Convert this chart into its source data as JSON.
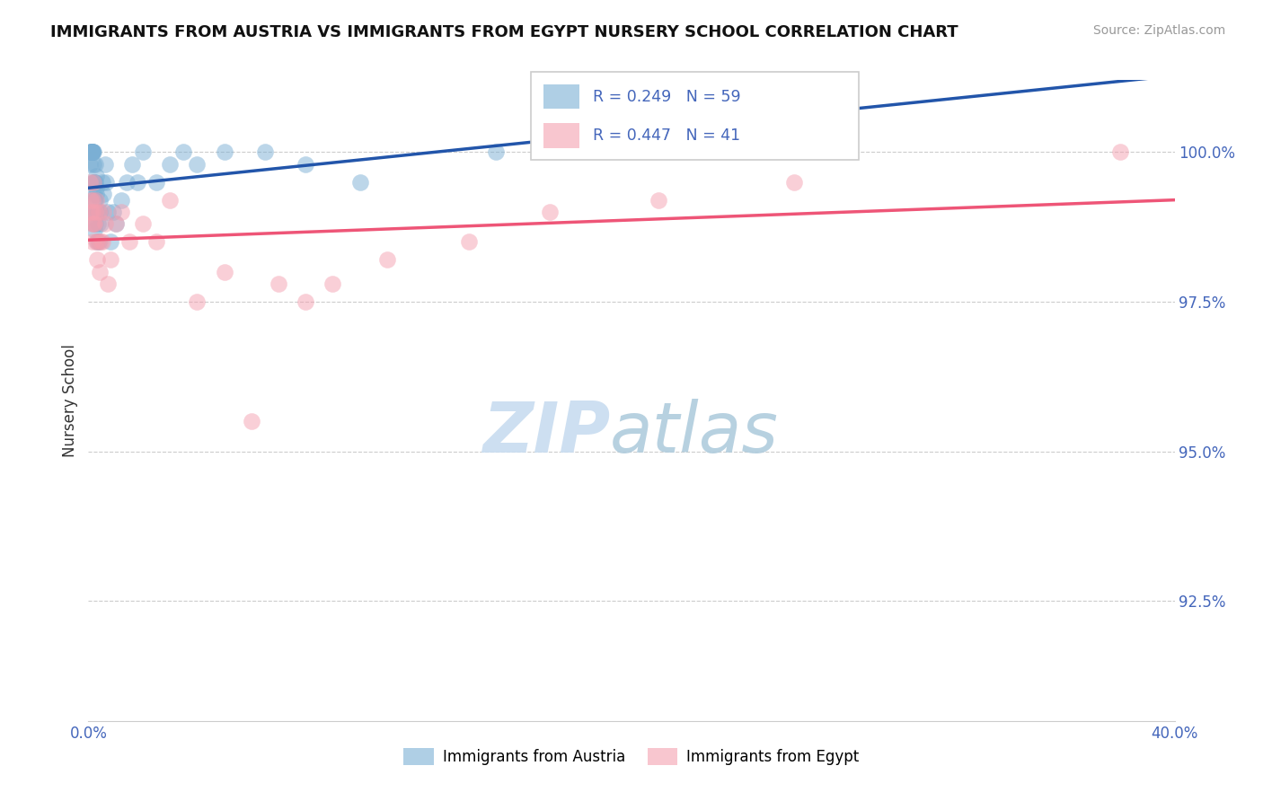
{
  "title": "IMMIGRANTS FROM AUSTRIA VS IMMIGRANTS FROM EGYPT NURSERY SCHOOL CORRELATION CHART",
  "source": "Source: ZipAtlas.com",
  "ylabel": "Nursery School",
  "xlim": [
    0.0,
    40.0
  ],
  "ylim": [
    90.5,
    101.2
  ],
  "yticks": [
    92.5,
    95.0,
    97.5,
    100.0
  ],
  "ytick_labels": [
    "92.5%",
    "95.0%",
    "97.5%",
    "100.0%"
  ],
  "austria_color": "#7BAFD4",
  "egypt_color": "#F4A0B0",
  "austria_line_color": "#2255AA",
  "egypt_line_color": "#EE5577",
  "tick_label_color": "#4466BB",
  "austria_R": 0.249,
  "austria_N": 59,
  "egypt_R": 0.447,
  "egypt_N": 41,
  "legend_label_austria": "Immigrants from Austria",
  "legend_label_egypt": "Immigrants from Egypt",
  "austria_x": [
    0.05,
    0.07,
    0.08,
    0.1,
    0.1,
    0.12,
    0.13,
    0.14,
    0.15,
    0.15,
    0.16,
    0.17,
    0.18,
    0.18,
    0.19,
    0.2,
    0.2,
    0.2,
    0.21,
    0.22,
    0.22,
    0.23,
    0.24,
    0.25,
    0.25,
    0.26,
    0.27,
    0.28,
    0.3,
    0.3,
    0.32,
    0.34,
    0.36,
    0.38,
    0.4,
    0.42,
    0.45,
    0.5,
    0.55,
    0.6,
    0.65,
    0.7,
    0.8,
    0.9,
    1.0,
    1.2,
    1.4,
    1.6,
    1.8,
    2.0,
    2.5,
    3.0,
    3.5,
    4.0,
    5.0,
    6.5,
    8.0,
    10.0,
    15.0
  ],
  "austria_y": [
    99.8,
    100.0,
    100.0,
    100.0,
    100.0,
    100.0,
    100.0,
    100.0,
    100.0,
    100.0,
    100.0,
    100.0,
    99.8,
    99.5,
    99.5,
    99.3,
    99.0,
    98.8,
    98.7,
    99.2,
    99.5,
    99.0,
    99.2,
    99.5,
    98.8,
    99.8,
    99.6,
    99.4,
    99.3,
    99.0,
    98.5,
    99.0,
    98.8,
    98.5,
    99.0,
    99.2,
    98.8,
    99.5,
    99.3,
    99.8,
    99.5,
    99.0,
    98.5,
    99.0,
    98.8,
    99.2,
    99.5,
    99.8,
    99.5,
    100.0,
    99.5,
    99.8,
    100.0,
    99.8,
    100.0,
    100.0,
    99.8,
    99.5,
    100.0
  ],
  "egypt_x": [
    0.05,
    0.08,
    0.1,
    0.12,
    0.14,
    0.15,
    0.16,
    0.18,
    0.2,
    0.22,
    0.25,
    0.28,
    0.3,
    0.32,
    0.35,
    0.38,
    0.4,
    0.45,
    0.5,
    0.55,
    0.6,
    0.7,
    0.8,
    1.0,
    1.2,
    1.5,
    2.0,
    2.5,
    3.0,
    4.0,
    5.0,
    6.0,
    7.0,
    8.0,
    9.0,
    11.0,
    14.0,
    17.0,
    21.0,
    26.0,
    38.0
  ],
  "egypt_y": [
    99.5,
    99.2,
    99.0,
    98.8,
    99.0,
    99.2,
    98.5,
    98.8,
    99.5,
    98.8,
    99.0,
    98.5,
    99.2,
    98.2,
    98.5,
    99.0,
    98.0,
    98.5,
    98.5,
    99.0,
    98.8,
    97.8,
    98.2,
    98.8,
    99.0,
    98.5,
    98.8,
    98.5,
    99.2,
    97.5,
    98.0,
    95.5,
    97.8,
    97.5,
    97.8,
    98.2,
    98.5,
    99.0,
    99.2,
    99.5,
    100.0
  ]
}
